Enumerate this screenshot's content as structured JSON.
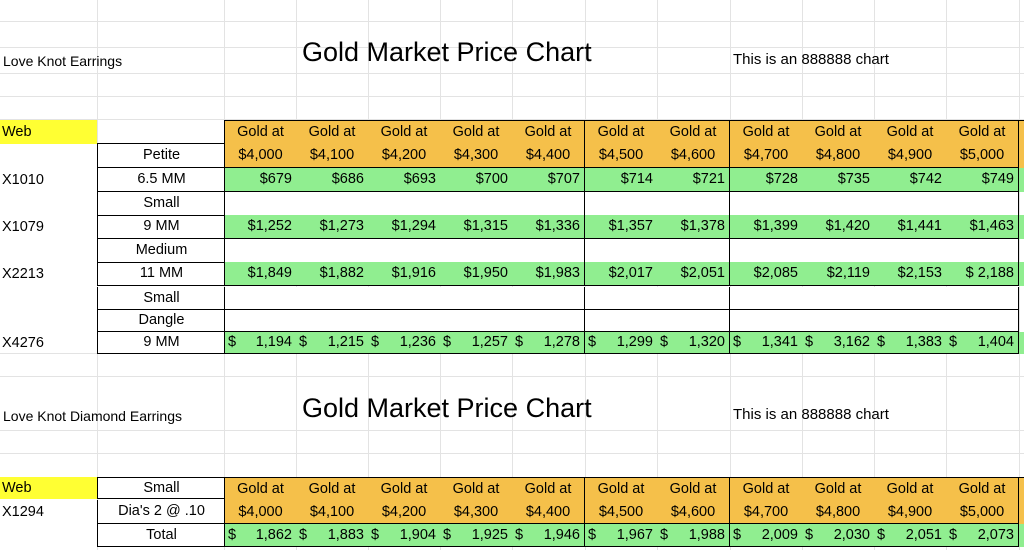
{
  "colors": {
    "header": "#f5c04a",
    "price": "#90ee90",
    "web": "#ffff33"
  },
  "section1": {
    "product": "Love Knot  Earrings",
    "title": "Gold Market Price Chart",
    "note": "This is an 888888 chart",
    "web_label": "Web",
    "gold_prefix": "Gold at",
    "gold_prices": [
      "$4,000",
      "$4,100",
      "$4,200",
      "$4,300",
      "$4,400",
      "$4,500",
      "$4,600",
      "$4,700",
      "$4,800",
      "$4,900",
      "$5,000"
    ],
    "rows": [
      {
        "sku": "X1010",
        "size1": "Petite",
        "size2": "6.5 MM",
        "prices": [
          "$679",
          "$686",
          "$693",
          "$700",
          "$707",
          "$714",
          "$721",
          "$728",
          "$735",
          "$742",
          "$749"
        ],
        "acct": false
      },
      {
        "sku": "X1079",
        "size1": "Small",
        "size2": "9 MM",
        "prices": [
          "$1,252",
          "$1,273",
          "$1,294",
          "$1,315",
          "$1,336",
          "$1,357",
          "$1,378",
          "$1,399",
          "$1,420",
          "$1,441",
          "$1,463"
        ],
        "acct": false
      },
      {
        "sku": "X2213",
        "size1": "Medium",
        "size2": "11 MM",
        "prices": [
          "$1,849",
          "$1,882",
          "$1,916",
          "$1,950",
          "$1,983",
          "$2,017",
          "$2,051",
          "$2,085",
          "$2,119",
          "$2,153",
          "$ 2,188"
        ],
        "acct": false
      }
    ],
    "dangle": {
      "sku": "X4276",
      "line1": "Small",
      "line2": "Dangle",
      "line3": "9  MM",
      "prices": [
        "1,194",
        "1,215",
        "1,236",
        "1,257",
        "1,278",
        "1,299",
        "1,320",
        "1,341",
        "3,162",
        "1,383",
        "1,404"
      ]
    }
  },
  "section2": {
    "product": "Love Knot Diamond Earrings",
    "title": "Gold Market Price Chart",
    "note": "This is an 888888 chart",
    "web_label": "Web",
    "size": "Small",
    "sku": "X1294",
    "desc": "Dia's 2 @ .10",
    "total_label": "Total",
    "gold_prefix": "Gold at",
    "gold_prices": [
      "$4,000",
      "$4,100",
      "$4,200",
      "$4,300",
      "$4,400",
      "$4,500",
      "$4,600",
      "$4,700",
      "$4,800",
      "$4,900",
      "$5,000"
    ],
    "totals": [
      "1,862",
      "1,883",
      "1,904",
      "1,925",
      "1,946",
      "1,967",
      "1,988",
      "2,009",
      "2,030",
      "2,051",
      "2,073"
    ]
  }
}
